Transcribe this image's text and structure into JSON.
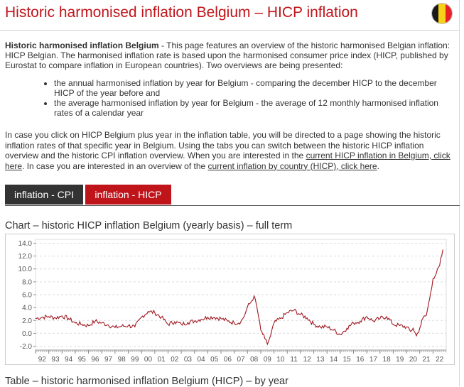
{
  "header": {
    "title": "Historic harmonised inflation Belgium – HICP inflation",
    "flag_colors": [
      "#1a1a1a",
      "#f7d117",
      "#e8202a"
    ]
  },
  "intro": {
    "bold": "Historic harmonised inflation Belgium",
    "text": " - This page features an overview of the historic harmonised Belgian inflation: HICP Belgian. The harmonised inflation rate is based upon the harmonised consumer price index (HICP, published by Eurostat to compare inflation in European countries). Two overviews are being presented:"
  },
  "bullets": [
    "the annual harmonised inflation by year for Belgium - comparing the december HICP to the december HICP of the year before and",
    "the average harmonised inflation by year for Belgium - the average of 12 monthly harmonised inflation rates of a calendar year"
  ],
  "para2": {
    "text1": "In case you click on HICP Belgium plus year in the inflation table, you will be directed to a page showing the historic inflation rates of that specific year in Belgium. Using the tabs you can switch between the historic HICP inflation overview and the historic CPI inflation overview. When you are interested in the ",
    "link1": "current HICP inflation in Belgium, click here",
    "text2": ". In case you are interested in an overview of the ",
    "link2": "current inflation by country (HICP), click here",
    "text3": "."
  },
  "tabs": [
    {
      "label": "inflation - CPI",
      "active": false
    },
    {
      "label": "inflation - HICP",
      "active": true
    }
  ],
  "chart_title": "Chart – historic HICP inflation Belgium (yearly basis) – full term",
  "table_title": "Table – historic harmonised inflation Belgium (HICP) – by year",
  "chart_data": {
    "type": "line",
    "title": "Chart – historic HICP inflation Belgium (yearly basis) – full term",
    "xlabel": "",
    "ylabel": "",
    "line_color": "#a01820",
    "ylim": [
      -2.6,
      14.6
    ],
    "yticks": [
      "14.0",
      "12.0",
      "10.0",
      "8.0",
      "6.0",
      "4.0",
      "2.0",
      "0.0",
      "-2.0"
    ],
    "ytick_values": [
      14,
      12,
      10,
      8,
      6,
      4,
      2,
      0,
      -2
    ],
    "xticks": [
      "92",
      "93",
      "94",
      "95",
      "96",
      "97",
      "98",
      "99",
      "00",
      "01",
      "02",
      "03",
      "04",
      "05",
      "06",
      "07",
      "08",
      "09",
      "10",
      "11",
      "12",
      "13",
      "14",
      "15",
      "16",
      "17",
      "18",
      "19",
      "20",
      "21",
      "22"
    ],
    "xlim": [
      1992.0,
      2023.0
    ],
    "grid": true,
    "legend": "none",
    "series": [
      {
        "x": [
          1992.0,
          1992.5,
          1993.0,
          1993.5,
          1994.0,
          1994.5,
          1995.0,
          1995.5,
          1996.0,
          1996.5,
          1997.0,
          1997.5,
          1998.0,
          1998.5,
          1999.0,
          1999.5,
          2000.0,
          2000.5,
          2001.0,
          2001.5,
          2002.0,
          2002.5,
          2003.0,
          2003.5,
          2004.0,
          2004.5,
          2005.0,
          2005.5,
          2006.0,
          2006.5,
          2007.0,
          2007.5,
          2007.8,
          2008.0,
          2008.3,
          2008.5,
          2008.75,
          2009.0,
          2009.3,
          2009.5,
          2009.75,
          2010.0,
          2010.5,
          2011.0,
          2011.5,
          2012.0,
          2012.5,
          2013.0,
          2013.5,
          2014.0,
          2014.5,
          2015.0,
          2015.5,
          2016.0,
          2016.5,
          2017.0,
          2017.5,
          2018.0,
          2018.5,
          2019.0,
          2019.5,
          2020.0,
          2020.3,
          2020.5,
          2020.75,
          2021.0,
          2021.25,
          2021.5,
          2021.75,
          2022.0,
          2022.25,
          2022.5,
          2022.75
        ],
        "y": [
          2.3,
          2.5,
          2.6,
          2.4,
          2.7,
          2.3,
          1.6,
          1.4,
          1.2,
          1.9,
          1.6,
          1.3,
          0.9,
          1.1,
          1.2,
          1.0,
          2.5,
          3.4,
          3.2,
          2.5,
          1.4,
          1.8,
          1.4,
          1.7,
          1.9,
          2.2,
          2.5,
          2.5,
          2.3,
          1.9,
          1.6,
          1.8,
          2.9,
          4.1,
          5.0,
          5.8,
          3.6,
          0.5,
          -0.8,
          -1.7,
          -0.3,
          1.6,
          2.3,
          3.2,
          3.6,
          2.9,
          2.4,
          1.4,
          1.0,
          1.0,
          0.5,
          -0.2,
          0.8,
          1.6,
          1.9,
          2.6,
          1.9,
          2.3,
          2.6,
          1.4,
          1.2,
          1.0,
          0.3,
          0.8,
          -0.4,
          0.8,
          2.4,
          2.8,
          5.4,
          8.5,
          9.3,
          10.5,
          13.0
        ]
      }
    ]
  }
}
